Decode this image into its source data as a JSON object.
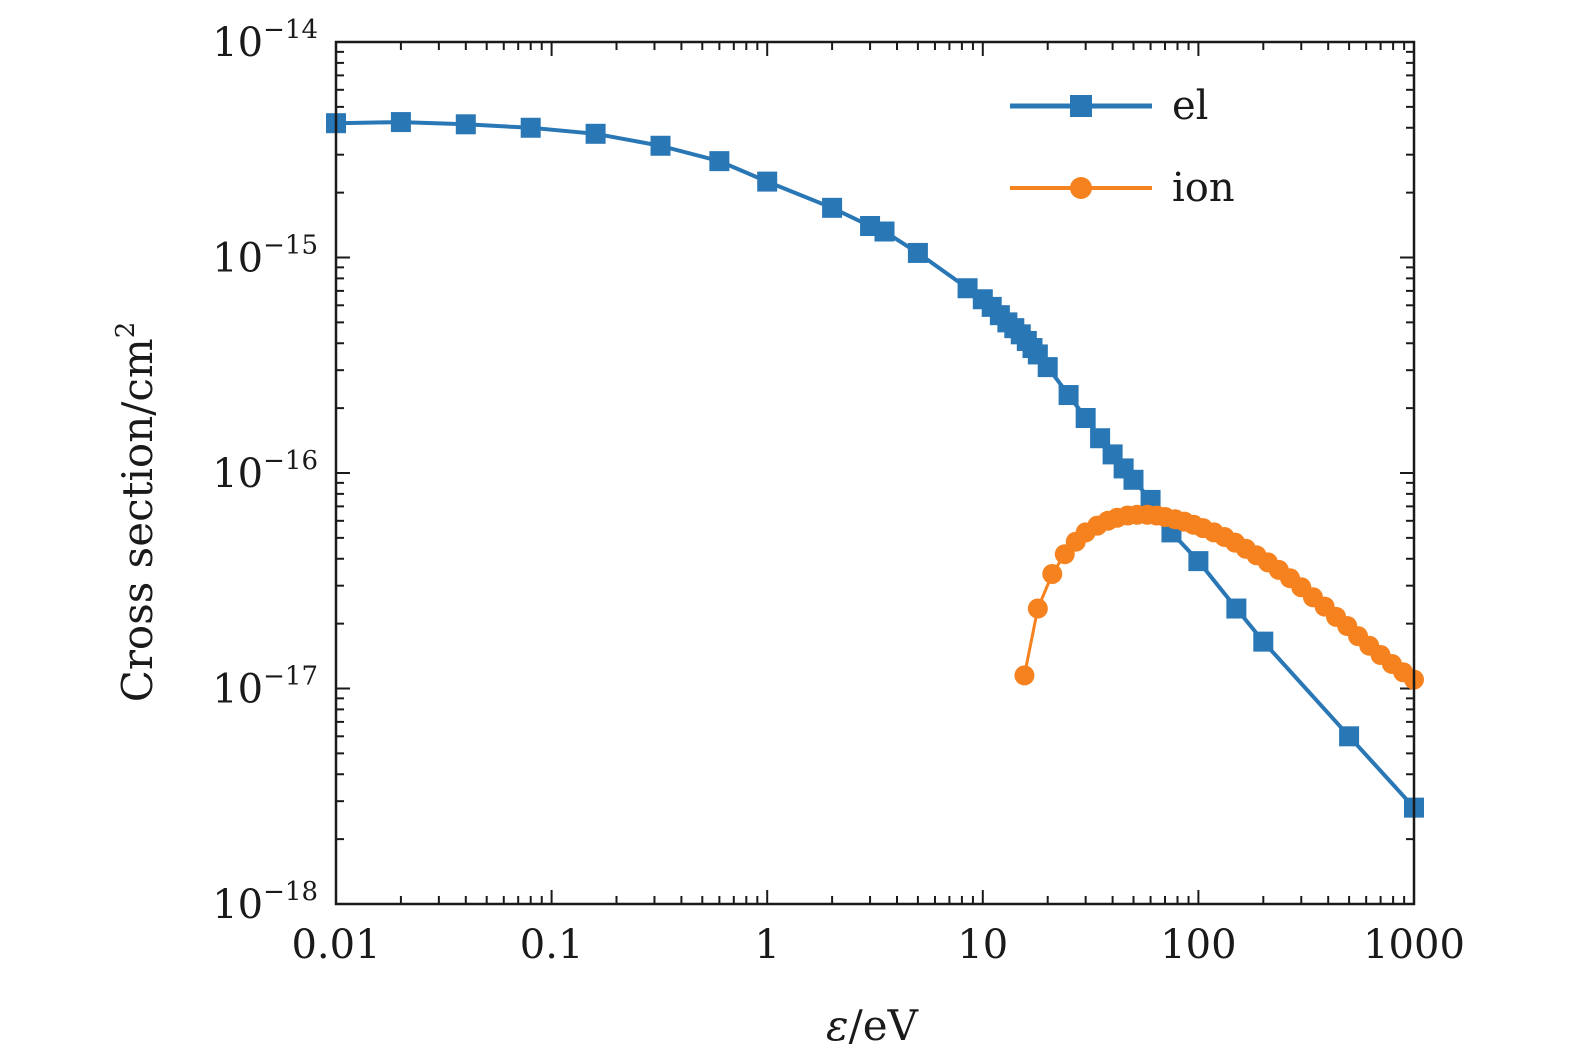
{
  "chart_data": {
    "type": "line",
    "title": "",
    "xlabel_var": "ε",
    "xlabel_unit": "/eV",
    "ylabel_text": "Cross section/cm",
    "ylabel_sup": "2",
    "xscale": "log",
    "yscale": "log",
    "xlim": [
      0.01,
      1000
    ],
    "ylim": [
      1e-18,
      1e-14
    ],
    "x_ticks": [
      {
        "value": 0.01,
        "label": "0.01"
      },
      {
        "value": 0.1,
        "label": "0.1"
      },
      {
        "value": 1,
        "label": "1"
      },
      {
        "value": 10,
        "label": "10"
      },
      {
        "value": 100,
        "label": "100"
      },
      {
        "value": 1000,
        "label": "1000"
      }
    ],
    "y_ticks": [
      {
        "value": 1e-14,
        "base": "10",
        "exp": "−14"
      },
      {
        "value": 1e-15,
        "base": "10",
        "exp": "−15"
      },
      {
        "value": 1e-16,
        "base": "10",
        "exp": "−16"
      },
      {
        "value": 1e-17,
        "base": "10",
        "exp": "−17"
      },
      {
        "value": 1e-18,
        "base": "10",
        "exp": "−18"
      }
    ],
    "grid": false,
    "legend_position": "top-right",
    "series": [
      {
        "name": "el",
        "color": "#2a77b6",
        "marker": "square",
        "x": [
          0.01,
          0.02,
          0.04,
          0.08,
          0.16,
          0.32,
          0.6,
          1,
          2,
          3,
          3.5,
          5,
          8.5,
          10,
          11,
          12,
          13,
          14,
          15,
          16,
          17,
          18,
          20,
          25,
          30,
          35,
          40,
          45,
          50,
          60,
          75,
          100,
          150,
          200,
          500,
          1000
        ],
        "y": [
          4.2e-15,
          4.25e-15,
          4.15e-15,
          4e-15,
          3.75e-15,
          3.3e-15,
          2.8e-15,
          2.25e-15,
          1.7e-15,
          1.4e-15,
          1.32e-15,
          1.05e-15,
          7.2e-16,
          6.4e-16,
          5.9e-16,
          5.4e-16,
          5e-16,
          4.7e-16,
          4.4e-16,
          4.1e-16,
          3.8e-16,
          3.55e-16,
          3.1e-16,
          2.3e-16,
          1.8e-16,
          1.45e-16,
          1.22e-16,
          1.05e-16,
          9.3e-17,
          7.5e-17,
          5.3e-17,
          3.9e-17,
          2.35e-17,
          1.65e-17,
          6e-18,
          2.8e-18
        ]
      },
      {
        "name": "ion",
        "color": "#f5821f",
        "marker": "circle",
        "x": [
          15.6,
          18,
          21,
          24,
          27,
          30,
          34,
          38,
          42,
          47,
          52,
          58,
          64,
          70,
          78,
          86,
          95,
          105,
          118,
          132,
          148,
          166,
          186,
          210,
          236,
          266,
          300,
          340,
          385,
          435,
          490,
          550,
          620,
          700,
          790,
          890,
          1000
        ],
        "y": [
          1.15e-17,
          2.35e-17,
          3.4e-17,
          4.2e-17,
          4.8e-17,
          5.3e-17,
          5.7e-17,
          6e-17,
          6.2e-17,
          6.35e-17,
          6.4e-17,
          6.4e-17,
          6.35e-17,
          6.25e-17,
          6.1e-17,
          5.95e-17,
          5.75e-17,
          5.55e-17,
          5.3e-17,
          5.05e-17,
          4.75e-17,
          4.45e-17,
          4.15e-17,
          3.85e-17,
          3.55e-17,
          3.25e-17,
          2.95e-17,
          2.65e-17,
          2.4e-17,
          2.15e-17,
          1.95e-17,
          1.75e-17,
          1.58e-17,
          1.43e-17,
          1.3e-17,
          1.19e-17,
          1.1e-17
        ]
      }
    ]
  }
}
